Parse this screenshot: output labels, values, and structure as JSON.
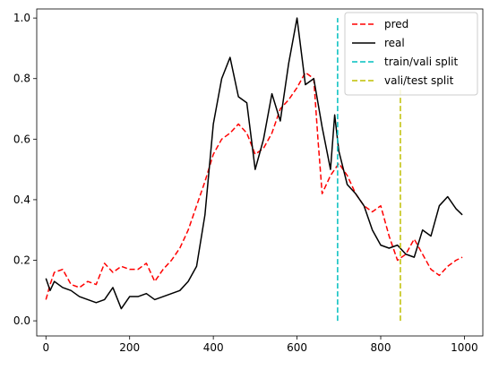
{
  "chart_data": {
    "type": "line",
    "title": "",
    "xlabel": "",
    "ylabel": "",
    "xlim": [
      -22,
      1044
    ],
    "ylim": [
      -0.05,
      1.03
    ],
    "x_ticks": [
      0,
      200,
      400,
      600,
      800,
      1000
    ],
    "y_ticks": [
      0.0,
      0.2,
      0.4,
      0.6,
      0.8,
      1.0
    ],
    "grid": false,
    "legend_position": "top-right",
    "series": [
      {
        "name": "pred",
        "color": "#ff0000",
        "style": "dashed",
        "x": [
          0,
          10,
          20,
          40,
          60,
          80,
          100,
          120,
          140,
          160,
          180,
          200,
          220,
          240,
          260,
          280,
          300,
          320,
          340,
          360,
          380,
          400,
          420,
          440,
          460,
          480,
          500,
          520,
          540,
          560,
          580,
          600,
          620,
          640,
          650,
          660,
          680,
          700,
          720,
          740,
          760,
          780,
          800,
          820,
          840,
          860,
          880,
          900,
          920,
          940,
          960,
          980,
          995
        ],
        "y": [
          0.07,
          0.12,
          0.16,
          0.17,
          0.12,
          0.11,
          0.13,
          0.12,
          0.19,
          0.16,
          0.18,
          0.17,
          0.17,
          0.19,
          0.13,
          0.17,
          0.2,
          0.24,
          0.3,
          0.38,
          0.46,
          0.55,
          0.6,
          0.62,
          0.65,
          0.62,
          0.55,
          0.57,
          0.62,
          0.7,
          0.73,
          0.77,
          0.82,
          0.8,
          0.6,
          0.42,
          0.48,
          0.52,
          0.48,
          0.42,
          0.38,
          0.36,
          0.38,
          0.28,
          0.2,
          0.22,
          0.27,
          0.22,
          0.17,
          0.15,
          0.18,
          0.2,
          0.21
        ]
      },
      {
        "name": "real",
        "color": "#000000",
        "style": "solid",
        "x": [
          0,
          10,
          20,
          40,
          60,
          80,
          100,
          120,
          140,
          160,
          180,
          200,
          220,
          240,
          260,
          280,
          300,
          320,
          340,
          360,
          380,
          400,
          420,
          440,
          460,
          480,
          500,
          520,
          540,
          560,
          580,
          600,
          620,
          640,
          660,
          680,
          690,
          700,
          720,
          740,
          760,
          780,
          800,
          820,
          840,
          860,
          880,
          900,
          920,
          940,
          960,
          980,
          995
        ],
        "y": [
          0.14,
          0.1,
          0.13,
          0.11,
          0.1,
          0.08,
          0.07,
          0.06,
          0.07,
          0.11,
          0.04,
          0.08,
          0.08,
          0.09,
          0.07,
          0.08,
          0.09,
          0.1,
          0.13,
          0.18,
          0.35,
          0.65,
          0.8,
          0.87,
          0.74,
          0.72,
          0.5,
          0.6,
          0.75,
          0.66,
          0.85,
          1.0,
          0.78,
          0.8,
          0.64,
          0.5,
          0.68,
          0.56,
          0.45,
          0.42,
          0.38,
          0.3,
          0.25,
          0.24,
          0.25,
          0.22,
          0.21,
          0.3,
          0.28,
          0.38,
          0.41,
          0.37,
          0.35
        ]
      },
      {
        "name": "train/vali split",
        "color": "#00bfbf",
        "style": "dashed",
        "x": [
          697,
          697
        ],
        "y": [
          0.0,
          1.0
        ]
      },
      {
        "name": "vali/test split",
        "color": "#bfbf00",
        "style": "dashed",
        "x": [
          847,
          847
        ],
        "y": [
          0.0,
          0.77
        ]
      }
    ]
  }
}
